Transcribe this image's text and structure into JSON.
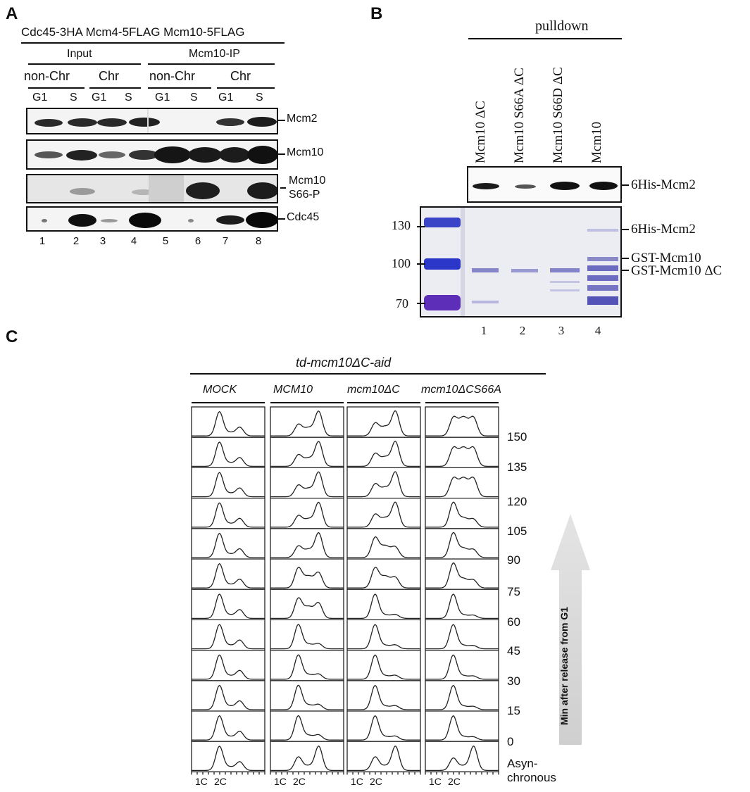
{
  "panelA": {
    "label": "A",
    "strain": "Cdc45-3HA Mcm4-5FLAG Mcm10-5FLAG",
    "groups": [
      "Input",
      "Mcm10-IP"
    ],
    "fractions": [
      "non-Chr",
      "Chr",
      "non-Chr",
      "Chr"
    ],
    "phases": [
      "G1",
      "S",
      "G1",
      "S",
      "G1",
      "S",
      "G1",
      "S"
    ],
    "blots": [
      "Mcm2",
      "Mcm10",
      "Mcm10",
      "S66-P",
      "Cdc45"
    ],
    "lanes": [
      "1",
      "2",
      "3",
      "4",
      "5",
      "6",
      "7",
      "8"
    ]
  },
  "panelB": {
    "label": "B",
    "header": "pulldown",
    "samples": [
      "Mcm10 ΔC",
      "Mcm10 S66A ΔC",
      "Mcm10 S66D ΔC",
      "Mcm10"
    ],
    "blot_label": "6His-Mcm2",
    "markers": [
      "130",
      "100",
      "70"
    ],
    "gel_labels": [
      "6His-Mcm2",
      "GST-Mcm10",
      "GST-Mcm10 ΔC"
    ],
    "lanes": [
      "1",
      "2",
      "3",
      "4"
    ]
  },
  "panelC": {
    "label": "C",
    "strain": "td-mcm10ΔC-aid",
    "conditions": [
      "MOCK",
      "MCM10",
      "mcm10ΔC",
      "mcm10ΔCS66A"
    ],
    "times": [
      "150",
      "135",
      "120",
      "105",
      "90",
      "75",
      "60",
      "45",
      "30",
      "15",
      "0"
    ],
    "async_label_1": "Asyn-",
    "async_label_2": "chronous",
    "xlabels": [
      "1C",
      "2C"
    ],
    "arrow_label": "Min after release from G1"
  }
}
